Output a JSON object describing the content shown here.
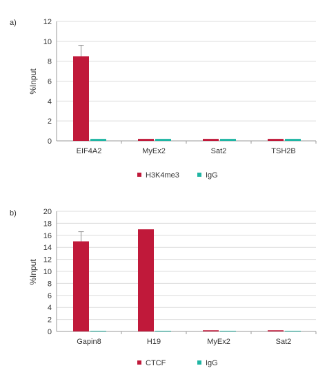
{
  "panels": [
    {
      "panel_label": "a)",
      "ylabel": "%Input",
      "legend": [
        {
          "label": "H3K4me3",
          "color": "#c0193a"
        },
        {
          "label": "IgG",
          "color": "#1fb5a3"
        }
      ]
    },
    {
      "panel_label": "b)",
      "ylabel": "%Input",
      "legend": [
        {
          "label": "CTCF",
          "color": "#c0193a"
        },
        {
          "label": "IgG",
          "color": "#1fb5a3"
        }
      ]
    }
  ],
  "chart_data": [
    {
      "type": "bar",
      "categories": [
        "EIF4A2",
        "MyEx2",
        "Sat2",
        "TSH2B"
      ],
      "series": [
        {
          "name": "H3K4me3",
          "values": [
            8.5,
            0.2,
            0.2,
            0.2
          ],
          "error": [
            1.1,
            0,
            0,
            0
          ],
          "color": "#c0193a"
        },
        {
          "name": "IgG",
          "values": [
            0.2,
            0.2,
            0.2,
            0.2
          ],
          "error": [
            0,
            0,
            0,
            0
          ],
          "color": "#1fb5a3"
        }
      ],
      "ylabel": "%Input",
      "ylim": [
        0,
        12
      ],
      "yticks": [
        0,
        2,
        4,
        6,
        8,
        10,
        12
      ],
      "grid": true,
      "legend_position": "bottom"
    },
    {
      "type": "bar",
      "categories": [
        "Gapin8",
        "H19",
        "MyEx2",
        "Sat2"
      ],
      "series": [
        {
          "name": "CTCF",
          "values": [
            15.0,
            17.0,
            0.2,
            0.2
          ],
          "error": [
            1.6,
            0,
            0,
            0
          ],
          "color": "#c0193a"
        },
        {
          "name": "IgG",
          "values": [
            0.1,
            0.1,
            0.1,
            0.1
          ],
          "error": [
            0,
            0,
            0,
            0
          ],
          "color": "#1fb5a3"
        }
      ],
      "ylabel": "%Input",
      "ylim": [
        0,
        20
      ],
      "yticks": [
        0,
        2,
        4,
        6,
        8,
        10,
        12,
        14,
        16,
        18,
        20
      ],
      "grid": true,
      "legend_position": "bottom"
    }
  ]
}
